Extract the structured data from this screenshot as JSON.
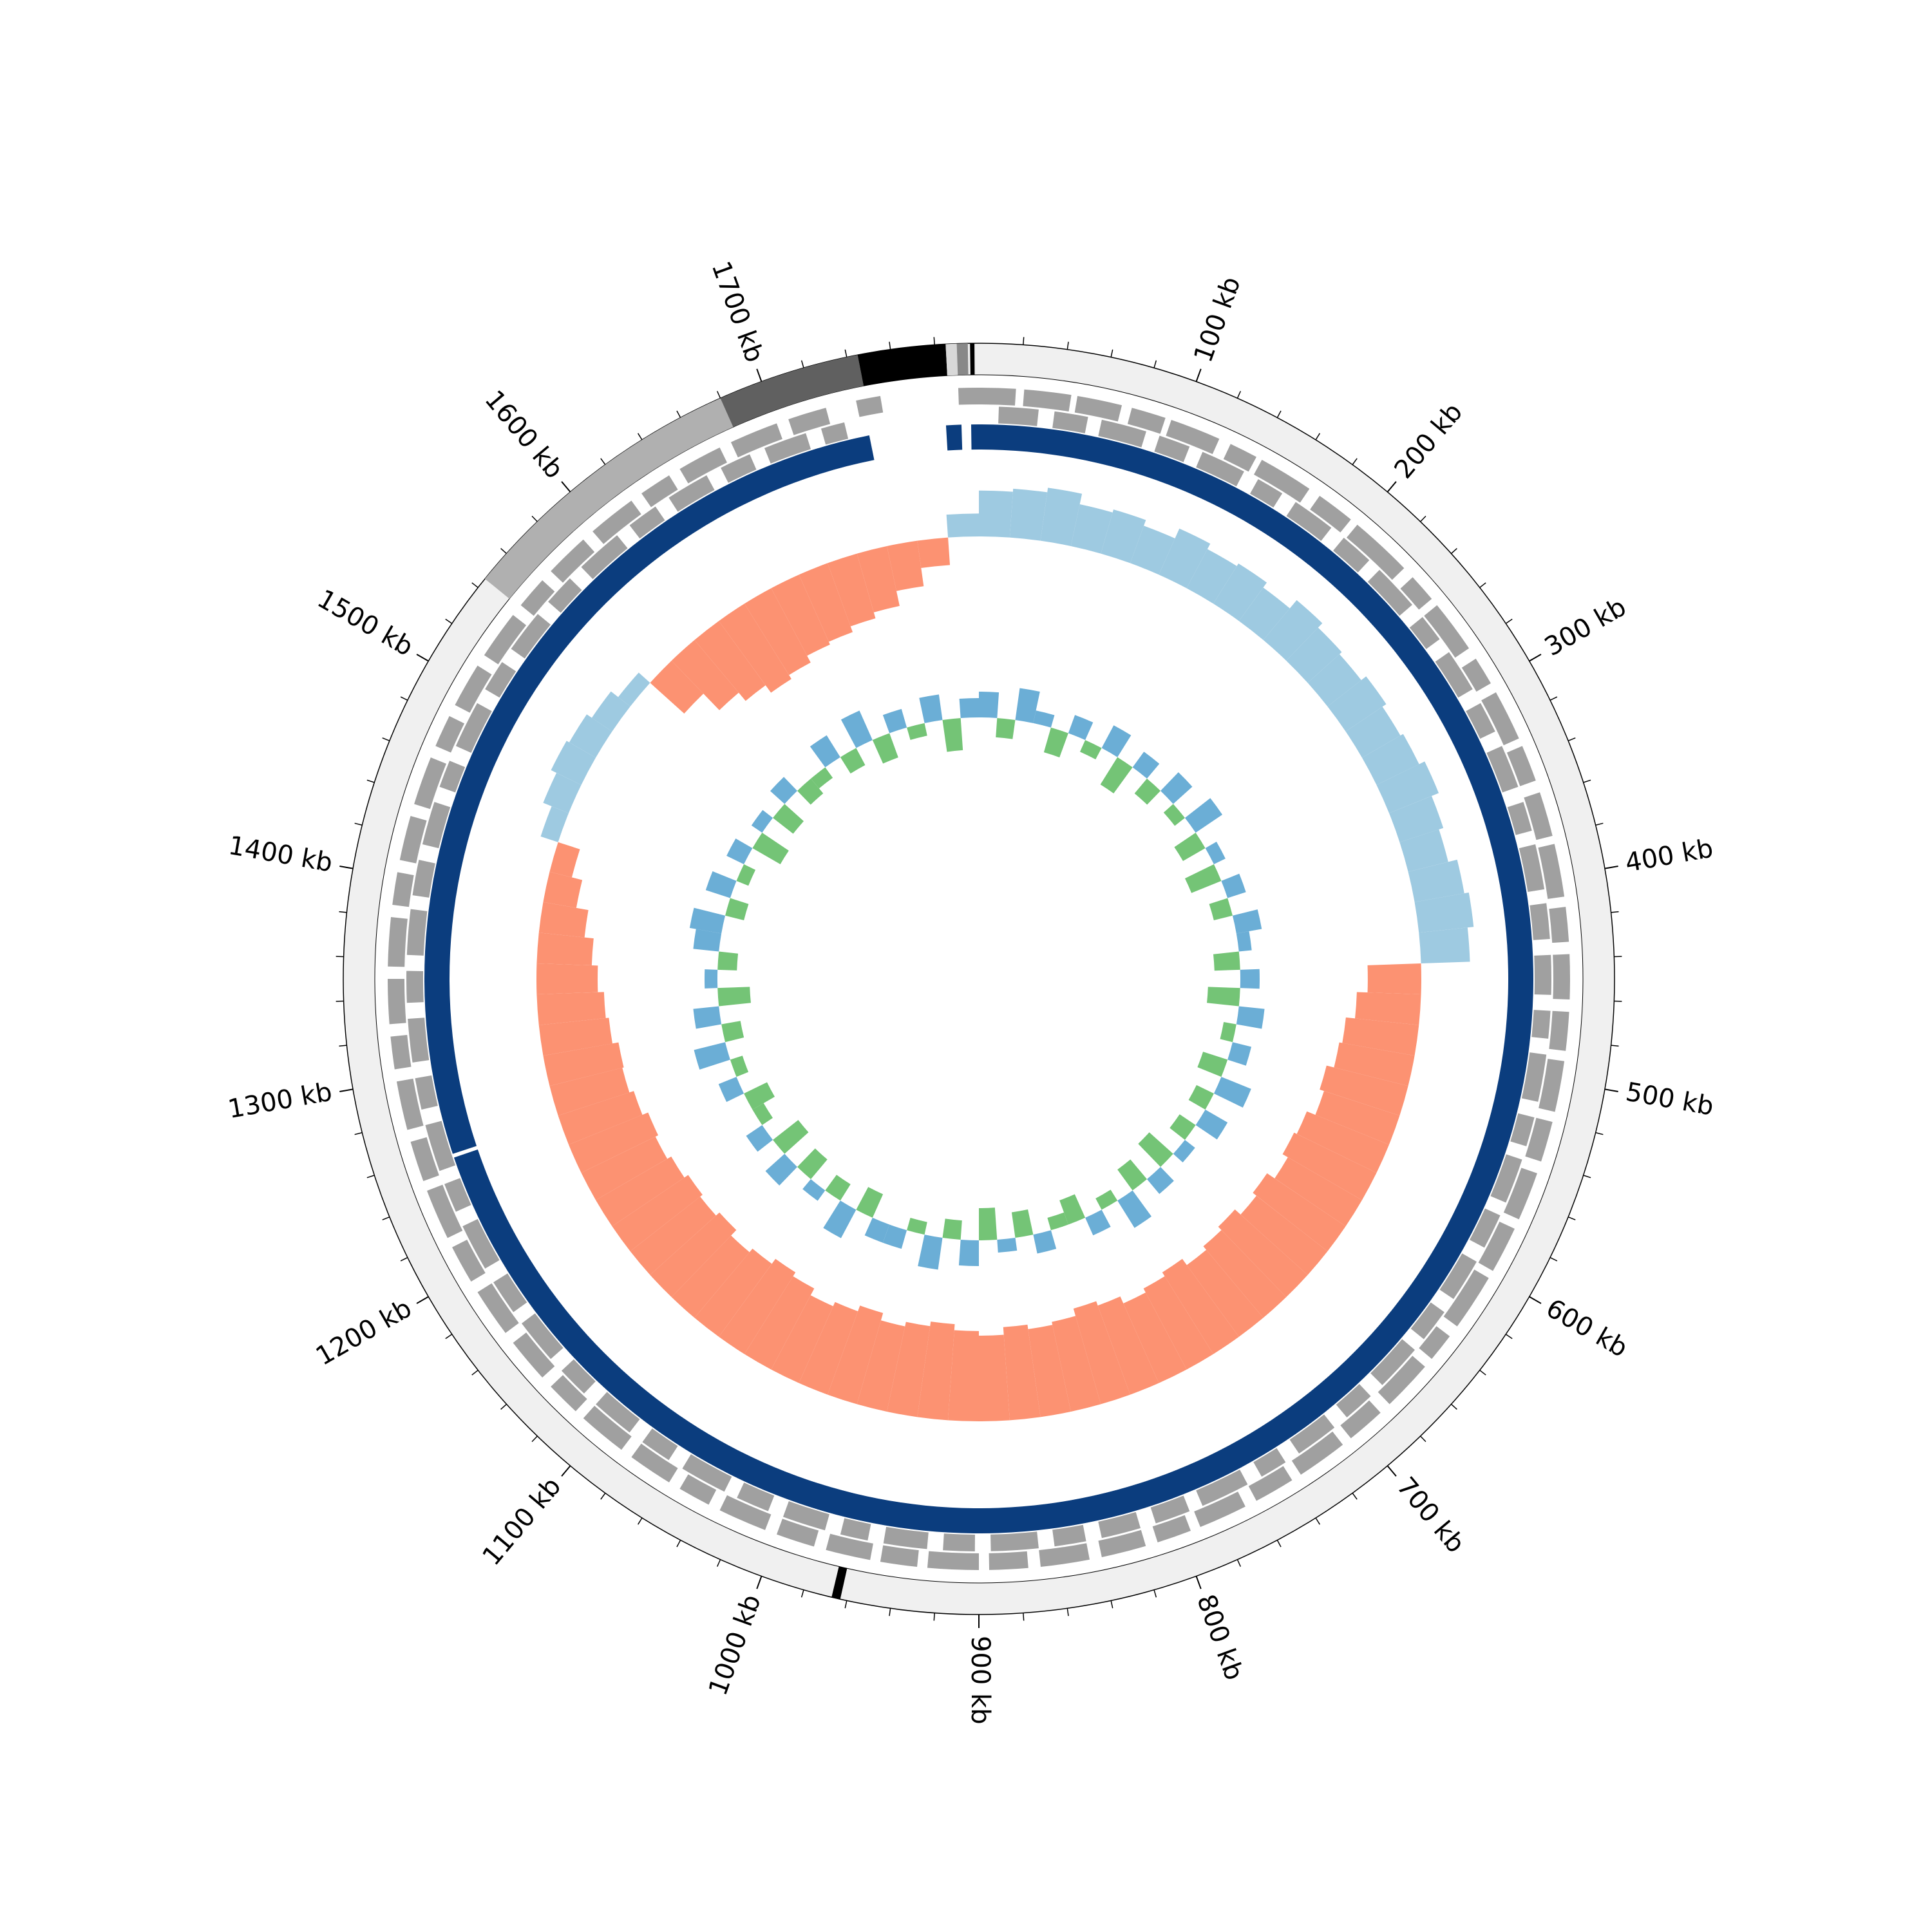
{
  "chart_data": {
    "type": "circular",
    "xlim": [
      0,
      1800
    ],
    "xticks": [
      {
        "value": 100,
        "label": "100 kb"
      },
      {
        "value": 200,
        "label": "200 kb"
      },
      {
        "value": 300,
        "label": "300 kb"
      },
      {
        "value": 400,
        "label": "400 kb"
      },
      {
        "value": 500,
        "label": "500 kb"
      },
      {
        "value": 600,
        "label": "600 kb"
      },
      {
        "value": 700,
        "label": "700 kb"
      },
      {
        "value": 800,
        "label": "800 kb"
      },
      {
        "value": 900,
        "label": "900 kb"
      },
      {
        "value": 1000,
        "label": "1000 kb"
      },
      {
        "value": 1100,
        "label": "1100 kb"
      },
      {
        "value": 1200,
        "label": "1200 kb"
      },
      {
        "value": 1300,
        "label": "1300 kb"
      },
      {
        "value": 1400,
        "label": "1400 kb"
      },
      {
        "value": 1500,
        "label": "1500 kb"
      },
      {
        "value": 1600,
        "label": "1600 kb"
      },
      {
        "value": 1700,
        "label": "1700 kb"
      }
    ],
    "minor_xticks": [
      20,
      40,
      60,
      80,
      120,
      140,
      160,
      180,
      220,
      240,
      260,
      280,
      320,
      340,
      360,
      380,
      420,
      440,
      460,
      480,
      520,
      540,
      560,
      580,
      620,
      640,
      660,
      680,
      720,
      740,
      760,
      780,
      820,
      840,
      860,
      880,
      920,
      940,
      960,
      980,
      1020,
      1040,
      1060,
      1080,
      1120,
      1140,
      1160,
      1180,
      1220,
      1240,
      1260,
      1280,
      1320,
      1340,
      1360,
      1380,
      1420,
      1440,
      1460,
      1480,
      1520,
      1540,
      1560,
      1580,
      1620,
      1640,
      1660,
      1680,
      1720,
      1740,
      1760,
      1780
    ],
    "regions": [
      {
        "start": 1545,
        "end": 1680,
        "color": "#b0b0b0"
      },
      {
        "start": 1680,
        "end": 1745,
        "color": "#606060"
      },
      {
        "start": 1745,
        "end": 1785,
        "color": "#000000"
      },
      {
        "start": 1785,
        "end": 1790,
        "color": "#d8d8d8"
      },
      {
        "start": 1790,
        "end": 1795,
        "color": "#888888"
      },
      {
        "start": 1796,
        "end": 1798,
        "color": "#000000"
      },
      {
        "start": 963,
        "end": 967,
        "color": "#000000"
      }
    ],
    "genes": {
      "color": "#a0a0a0",
      "forward": [
        [
          0,
          18
        ],
        [
          22,
          45
        ],
        [
          48,
          70
        ],
        [
          75,
          92
        ],
        [
          95,
          120
        ],
        [
          126,
          140
        ],
        [
          143,
          170
        ],
        [
          176,
          195
        ],
        [
          199,
          230
        ],
        [
          236,
          250
        ],
        [
          254,
          280
        ],
        [
          286,
          300
        ],
        [
          305,
          330
        ],
        [
          334,
          352
        ],
        [
          358,
          380
        ],
        [
          384,
          410
        ],
        [
          415,
          432
        ],
        [
          438,
          460
        ],
        [
          466,
          485
        ],
        [
          490,
          515
        ],
        [
          520,
          540
        ],
        [
          546,
          570
        ],
        [
          575,
          598
        ],
        [
          602,
          630
        ],
        [
          636,
          650
        ],
        [
          655,
          680
        ],
        [
          686,
          705
        ],
        [
          710,
          735
        ],
        [
          740,
          760
        ],
        [
          766,
          790
        ],
        [
          795,
          812
        ],
        [
          818,
          840
        ],
        [
          846,
          870
        ],
        [
          876,
          895
        ],
        [
          900,
          925
        ],
        [
          930,
          948
        ],
        [
          953,
          975
        ],
        [
          981,
          1000
        ],
        [
          1006,
          1030
        ],
        [
          1036,
          1052
        ],
        [
          1058,
          1080
        ],
        [
          1086,
          1110
        ],
        [
          1115,
          1132
        ],
        [
          1138,
          1160
        ],
        [
          1166,
          1190
        ],
        [
          1196,
          1215
        ],
        [
          1220,
          1245
        ],
        [
          1250,
          1270
        ],
        [
          1276,
          1300
        ],
        [
          1306,
          1322
        ],
        [
          1328,
          1350
        ],
        [
          1356,
          1380
        ],
        [
          1386,
          1402
        ],
        [
          1408,
          1430
        ],
        [
          1436,
          1460
        ],
        [
          1466,
          1482
        ],
        [
          1488,
          1510
        ],
        [
          1516,
          1540
        ],
        [
          1546,
          1562
        ],
        [
          1568,
          1590
        ],
        [
          1596,
          1620
        ],
        [
          1626,
          1642
        ],
        [
          1648,
          1670
        ],
        [
          1676,
          1700
        ],
        [
          1706,
          1725
        ],
        [
          1740,
          1752
        ],
        [
          1790,
          1800
        ]
      ],
      "reverse": [
        [
          10,
          30
        ],
        [
          38,
          55
        ],
        [
          62,
          85
        ],
        [
          92,
          108
        ],
        [
          115,
          138
        ],
        [
          146,
          160
        ],
        [
          168,
          190
        ],
        [
          198,
          215
        ],
        [
          222,
          246
        ],
        [
          254,
          268
        ],
        [
          276,
          298
        ],
        [
          306,
          322
        ],
        [
          330,
          352
        ],
        [
          360,
          375
        ],
        [
          382,
          405
        ],
        [
          412,
          430
        ],
        [
          438,
          458
        ],
        [
          466,
          480
        ],
        [
          488,
          512
        ],
        [
          520,
          535
        ],
        [
          542,
          565
        ],
        [
          572,
          590
        ],
        [
          598,
          620
        ],
        [
          628,
          645
        ],
        [
          652,
          676
        ],
        [
          684,
          700
        ],
        [
          708,
          730
        ],
        [
          738,
          752
        ],
        [
          760,
          785
        ],
        [
          792,
          810
        ],
        [
          818,
          838
        ],
        [
          846,
          862
        ],
        [
          870,
          894
        ],
        [
          902,
          918
        ],
        [
          926,
          948
        ],
        [
          956,
          970
        ],
        [
          978,
          1000
        ],
        [
          1008,
          1025
        ],
        [
          1032,
          1056
        ],
        [
          1064,
          1080
        ],
        [
          1088,
          1110
        ],
        [
          1118,
          1134
        ],
        [
          1142,
          1165
        ],
        [
          1172,
          1190
        ],
        [
          1198,
          1222
        ],
        [
          1230,
          1245
        ],
        [
          1252,
          1276
        ],
        [
          1284,
          1300
        ],
        [
          1308,
          1330
        ],
        [
          1338,
          1354
        ],
        [
          1362,
          1385
        ],
        [
          1392,
          1410
        ],
        [
          1418,
          1440
        ],
        [
          1448,
          1462
        ],
        [
          1470,
          1494
        ],
        [
          1502,
          1518
        ],
        [
          1526,
          1548
        ],
        [
          1556,
          1572
        ],
        [
          1580,
          1604
        ],
        [
          1612,
          1628
        ],
        [
          1636,
          1658
        ],
        [
          1666,
          1682
        ],
        [
          1690,
          1712
        ],
        [
          1720,
          1732
        ]
      ]
    },
    "backbone": {
      "color": "#0b3d7e",
      "segments": [
        [
          1796,
          1800
        ],
        [
          0,
          1256
        ],
        [
          1258,
          1743
        ],
        [
          1783,
          1791
        ]
      ]
    },
    "gc_skew": {
      "ylim": [
        -0.08,
        0.04
      ],
      "positive_color": "#9ecae1",
      "negative_color": "#fc9272",
      "x": [
        0,
        20,
        40,
        60,
        80,
        100,
        120,
        140,
        160,
        180,
        200,
        220,
        240,
        260,
        280,
        300,
        320,
        340,
        360,
        380,
        400,
        420,
        440,
        460,
        480,
        500,
        520,
        540,
        560,
        580,
        600,
        620,
        640,
        660,
        680,
        700,
        720,
        740,
        760,
        780,
        800,
        820,
        840,
        860,
        880,
        900,
        920,
        940,
        960,
        980,
        1000,
        1020,
        1040,
        1060,
        1080,
        1100,
        1120,
        1140,
        1160,
        1180,
        1200,
        1220,
        1240,
        1260,
        1280,
        1300,
        1320,
        1340,
        1360,
        1380,
        1400,
        1420,
        1440,
        1460,
        1480,
        1500,
        1520,
        1540,
        1560,
        1580,
        1600,
        1620,
        1640,
        1660,
        1680,
        1700,
        1720,
        1740,
        1760,
        1780
      ],
      "values": [
        0.03,
        0.032,
        0.035,
        0.028,
        0.03,
        0.026,
        0.033,
        0.029,
        0.031,
        0.027,
        0.034,
        0.03,
        0.028,
        0.032,
        0.029,
        0.031,
        0.035,
        0.03,
        0.027,
        0.033,
        0.036,
        0.032,
        -0.035,
        -0.042,
        -0.048,
        -0.05,
        -0.055,
        -0.052,
        -0.058,
        -0.06,
        -0.056,
        -0.062,
        -0.059,
        -0.064,
        -0.061,
        -0.058,
        -0.063,
        -0.06,
        -0.057,
        -0.062,
        -0.065,
        -0.06,
        -0.058,
        -0.061,
        -0.056,
        -0.059,
        -0.063,
        -0.06,
        -0.057,
        -0.062,
        -0.058,
        -0.055,
        -0.06,
        -0.063,
        -0.059,
        -0.056,
        -0.061,
        -0.058,
        -0.06,
        -0.057,
        -0.054,
        -0.056,
        -0.052,
        -0.049,
        -0.05,
        -0.046,
        -0.044,
        -0.04,
        -0.036,
        -0.03,
        -0.022,
        -0.015,
        0.012,
        0.018,
        0.022,
        0.02,
        0.016,
        0.01,
        -0.03,
        -0.045,
        -0.052,
        -0.058,
        -0.055,
        -0.05,
        -0.048,
        -0.044,
        -0.04,
        -0.03,
        -0.018,
        0.015
      ]
    },
    "gc_content": {
      "ylim": [
        -0.1,
        0.1
      ],
      "positive_color": "#6baed6",
      "negative_color": "#74c476",
      "x": [
        0,
        20,
        40,
        60,
        80,
        100,
        120,
        140,
        160,
        180,
        200,
        220,
        240,
        260,
        280,
        300,
        320,
        340,
        360,
        380,
        400,
        420,
        440,
        460,
        480,
        500,
        520,
        540,
        560,
        580,
        600,
        620,
        640,
        660,
        680,
        700,
        720,
        740,
        760,
        780,
        800,
        820,
        840,
        860,
        880,
        900,
        920,
        940,
        960,
        980,
        1000,
        1020,
        1040,
        1060,
        1080,
        1100,
        1120,
        1140,
        1160,
        1180,
        1200,
        1220,
        1240,
        1260,
        1280,
        1300,
        1320,
        1340,
        1360,
        1380,
        1400,
        1420,
        1440,
        1460,
        1480,
        1500,
        1520,
        1540,
        1560,
        1580,
        1600,
        1620,
        1640,
        1660,
        1680,
        1700,
        1720,
        1740,
        1760,
        1780
      ],
      "values": [
        0.04,
        -0.03,
        0.05,
        0.02,
        -0.04,
        0.03,
        -0.02,
        0.04,
        -0.05,
        0.03,
        -0.03,
        0.04,
        -0.02,
        0.05,
        -0.04,
        0.02,
        -0.05,
        0.03,
        -0.03,
        0.04,
        0.02,
        -0.04,
        0.03,
        -0.05,
        0.04,
        -0.02,
        0.03,
        -0.04,
        0.05,
        -0.03,
        0.04,
        -0.03,
        0.02,
        -0.05,
        0.03,
        -0.04,
        0.05,
        -0.02,
        0.03,
        -0.04,
        -0.02,
        0.03,
        -0.04,
        0.02,
        -0.05,
        0.04,
        -0.03,
        0.05,
        -0.02,
        0.03,
        0.03,
        -0.04,
        0.05,
        -0.03,
        0.02,
        -0.04,
        0.04,
        -0.05,
        0.03,
        -0.02,
        -0.04,
        0.03,
        -0.02,
        0.05,
        -0.03,
        0.04,
        -0.05,
        0.02,
        -0.03,
        0.04,
        0.05,
        -0.03,
        0.04,
        -0.02,
        0.03,
        -0.05,
        0.02,
        -0.04,
        0.03,
        -0.03,
        -0.02,
        0.04,
        -0.03,
        0.05,
        -0.04,
        0.03,
        -0.02,
        0.04,
        -0.05,
        0.03
      ]
    }
  }
}
